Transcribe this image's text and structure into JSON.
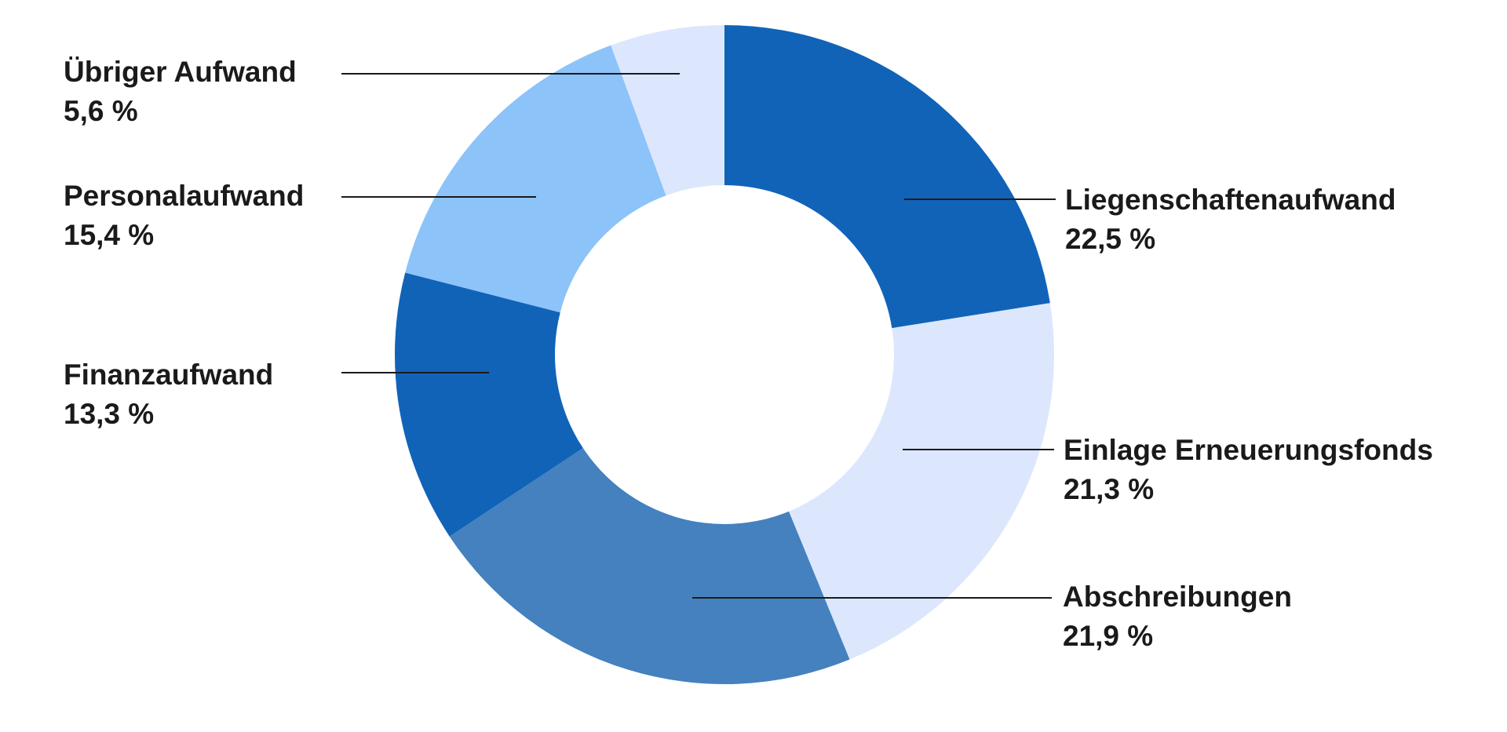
{
  "chart_data": {
    "type": "pie",
    "variant": "donut",
    "title": "",
    "start_angle": "top",
    "direction": "clockwise",
    "slices": [
      {
        "label": "Liegenschaftenaufwand",
        "value": 22.5,
        "value_text": "22,5 %",
        "color": "#1163b8"
      },
      {
        "label": "Einlage Erneuerungsfonds",
        "value": 21.3,
        "value_text": "21,3 %",
        "color": "#dce7fd"
      },
      {
        "label": "Abschreibungen",
        "value": 21.9,
        "value_text": "21,9 %",
        "color": "#4481be"
      },
      {
        "label": "Finanzaufwand",
        "value": 13.3,
        "value_text": "13,3 %",
        "color": "#1163b8"
      },
      {
        "label": "Personalaufwand",
        "value": 15.4,
        "value_text": "15,4 %",
        "color": "#8cc3f9"
      },
      {
        "label": "Übriger Aufwand",
        "value": 5.6,
        "value_text": "5,6 %",
        "color": "#dce7fd"
      }
    ]
  }
}
